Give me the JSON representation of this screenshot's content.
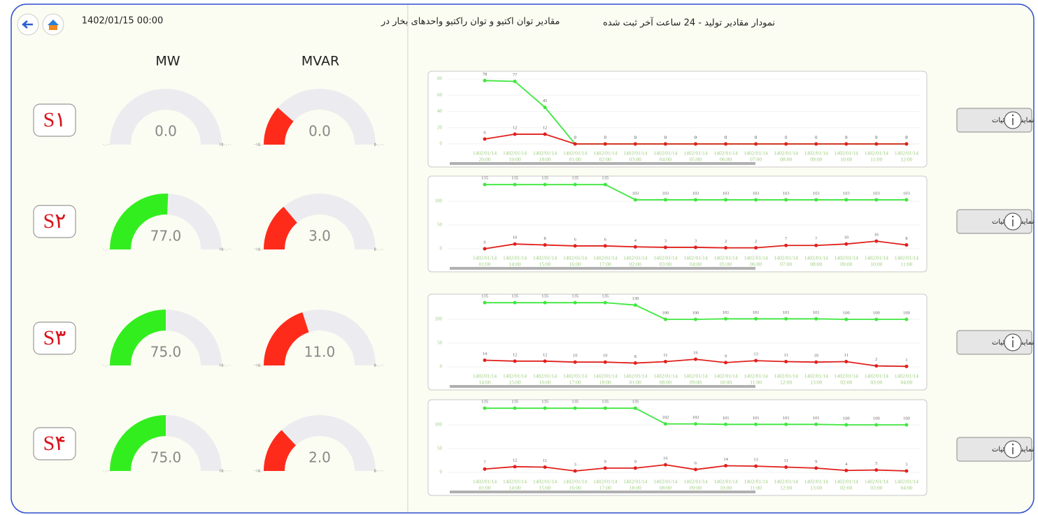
{
  "header": {
    "title": "مقادیر توان اکتیو و توان راکتیو واحدهای بخار در",
    "datetime": "1402/01/15 00:00"
  },
  "columns": [
    "MW",
    "MVAR"
  ],
  "gauge_colors": {
    "mw": "#33ee1f",
    "mvar": "#ff2b1a",
    "track": "#ececf0"
  },
  "mw_range": [
    {
      "value": 0,
      "label": "۰.۰۰"
    },
    {
      "value": 150,
      "label": "۱۵۰.۰۰"
    }
  ],
  "mvar_range": [
    {
      "value": -15,
      "label": "-۱۵.۰۰"
    },
    {
      "value": 50,
      "label": "۵۰.۰۰"
    }
  ],
  "units": [
    {
      "label": "S۱",
      "mw": {
        "value": 0,
        "label": "0.0"
      },
      "mvar": {
        "value": 0,
        "label": "0.0"
      }
    },
    {
      "label": "S۲",
      "mw": {
        "value": 77,
        "label": "77.0"
      },
      "mvar": {
        "value": 3,
        "label": "3.0"
      }
    },
    {
      "label": "S۳",
      "mw": {
        "value": 75,
        "label": "75.0"
      },
      "mvar": {
        "value": 11,
        "label": "11.0"
      }
    },
    {
      "label": "S۴",
      "mw": {
        "value": 75,
        "label": "75.0"
      },
      "mvar": {
        "value": 2,
        "label": "2.0"
      }
    }
  ],
  "panel_title": "نمودار مقادیر تولید - 24 ساعت آخر ثبت شده",
  "button_label": "نمایش جزئیات",
  "chart_data": [
    {
      "type": "line",
      "dates": [
        "1402/01/14",
        "1402/01/14",
        "1402/01/14",
        "1402/01/14",
        "1402/01/14",
        "1402/01/14",
        "1402/01/14",
        "1402/01/14",
        "1402/01/14",
        "1402/01/14",
        "1402/01/14",
        "1402/01/14",
        "1402/01/14",
        "1402/01/14",
        "1402/01/14"
      ],
      "categories": [
        "20:00",
        "19:00",
        "18:00",
        "01:00",
        "02:00",
        "03:00",
        "04:00",
        "05:00",
        "06:00",
        "07:00",
        "08:00",
        "09:00",
        "10:00",
        "11:00",
        "12:00"
      ],
      "series": [
        {
          "color": "#3ee83e",
          "values": [
            78,
            77,
            45,
            0,
            0,
            0,
            0,
            0,
            0,
            0,
            0,
            0,
            0,
            0,
            0
          ]
        },
        {
          "color": "#e0201c",
          "values": [
            6,
            12,
            12,
            0,
            0,
            0,
            0,
            0,
            0,
            0,
            0,
            0,
            0,
            0,
            0
          ]
        }
      ],
      "ylim": [
        0,
        86
      ],
      "yticks": [
        0,
        20,
        40,
        60,
        80
      ]
    },
    {
      "type": "line",
      "dates": [
        "1402/01/14",
        "1402/01/14",
        "1402/01/14",
        "1402/01/14",
        "1402/01/14",
        "1402/01/14",
        "1402/01/14",
        "1402/01/14",
        "1402/01/14",
        "1402/01/14",
        "1402/01/14",
        "1402/01/14",
        "1402/01/14",
        "1402/01/14",
        "1402/01/14"
      ],
      "categories": [
        "01:00",
        "14:00",
        "15:00",
        "16:00",
        "17:00",
        "02:00",
        "03:00",
        "04:00",
        "05:00",
        "06:00",
        "07:00",
        "08:00",
        "09:00",
        "10:00",
        "11:00"
      ],
      "series": [
        {
          "color": "#3ee83e",
          "values": [
            135,
            135,
            135,
            135,
            135,
            103,
            103,
            103,
            103,
            103,
            103,
            103,
            103,
            103,
            103
          ]
        },
        {
          "color": "#e0201c",
          "values": [
            0,
            10,
            8,
            6,
            6,
            4,
            3,
            3,
            2,
            2,
            7,
            7,
            10,
            16,
            8
          ]
        }
      ],
      "ylim": [
        0,
        147
      ],
      "yticks": [
        0,
        50,
        100
      ]
    },
    {
      "type": "line",
      "dates": [
        "1402/01/14",
        "1402/01/14",
        "1402/01/14",
        "1402/01/14",
        "1402/01/14",
        "1402/01/14",
        "1402/01/14",
        "1402/01/14",
        "1402/01/14",
        "1402/01/14",
        "1402/01/14",
        "1402/01/14",
        "1402/01/14",
        "1402/01/14",
        "1402/01/14"
      ],
      "categories": [
        "14:00",
        "15:00",
        "16:00",
        "17:00",
        "18:00",
        "01:00",
        "08:00",
        "09:00",
        "10:00",
        "11:00",
        "12:00",
        "13:00",
        "02:00",
        "03:00",
        "04:00"
      ],
      "series": [
        {
          "color": "#3ee83e",
          "values": [
            135,
            135,
            135,
            135,
            135,
            130,
            100,
            100,
            101,
            101,
            101,
            101,
            100,
            100,
            100
          ]
        },
        {
          "color": "#e0201c",
          "values": [
            14,
            12,
            12,
            10,
            10,
            8,
            11,
            16,
            9,
            13,
            11,
            10,
            11,
            2,
            1
          ]
        }
      ],
      "ylim": [
        0,
        147
      ],
      "yticks": [
        0,
        50,
        100
      ]
    },
    {
      "type": "line",
      "dates": [
        "1402/01/14",
        "1402/01/14",
        "1402/01/14",
        "1402/01/14",
        "1402/01/14",
        "1402/01/14",
        "1402/01/14",
        "1402/01/14",
        "1402/01/14",
        "1402/01/14",
        "1402/01/14",
        "1402/01/14",
        "1402/01/14",
        "1402/01/14",
        "1402/01/14"
      ],
      "categories": [
        "01:00",
        "14:00",
        "15:00",
        "16:00",
        "17:00",
        "18:00",
        "08:00",
        "09:00",
        "10:00",
        "11:00",
        "12:00",
        "13:00",
        "02:00",
        "03:00",
        "04:00"
      ],
      "series": [
        {
          "color": "#3ee83e",
          "values": [
            135,
            135,
            135,
            135,
            135,
            135,
            102,
            102,
            101,
            101,
            101,
            101,
            100,
            100,
            100
          ]
        },
        {
          "color": "#e0201c",
          "values": [
            7,
            12,
            11,
            3,
            9,
            9,
            16,
            6,
            14,
            13,
            11,
            9,
            4,
            5,
            3
          ]
        }
      ],
      "ylim": [
        0,
        147
      ],
      "yticks": [
        0,
        50,
        100
      ]
    }
  ]
}
